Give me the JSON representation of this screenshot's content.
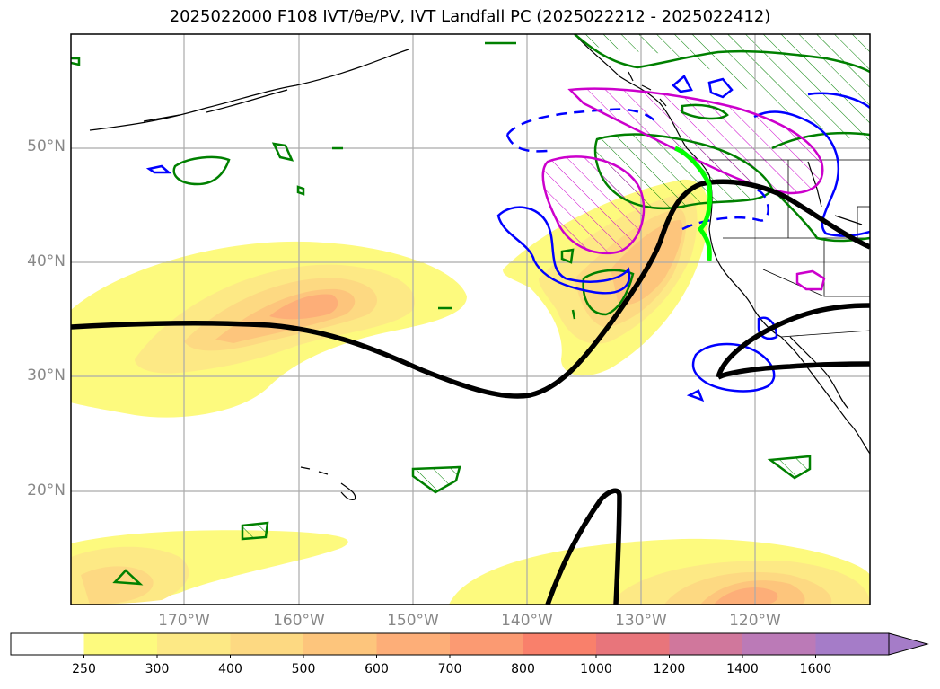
{
  "title": "2025022000 F108 IVT/θe/PV, IVT Landfall PC (2025022212 - 2025022412)",
  "lat_labels": [
    "50°N",
    "40°N",
    "30°N",
    "20°N"
  ],
  "lon_labels": [
    "170°W",
    "160°W",
    "150°W",
    "140°W",
    "130°W",
    "120°W"
  ],
  "colorbar": {
    "ticks": [
      "250",
      "300",
      "400",
      "500",
      "600",
      "700",
      "800",
      "1000",
      "1200",
      "1400",
      "1600"
    ],
    "colors": [
      "#ffffff",
      "#fdfa7e",
      "#fde985",
      "#fdd982",
      "#fdc57c",
      "#fdae78",
      "#fb9a72",
      "#f9806b",
      "#e8757b",
      "#d0779c",
      "#bb7ab7",
      "#a57cc8"
    ]
  },
  "colors": {
    "pv_contour": "#000000",
    "theta_e_pos": "#008000",
    "theta_e_neg": "#0000ff",
    "pc_magenta": "#cc00cc",
    "landfall": "#00ff00",
    "grid": "#aaaaaa"
  }
}
